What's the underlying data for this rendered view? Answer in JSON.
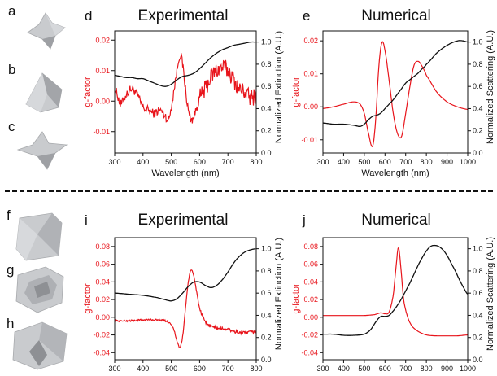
{
  "shape_labels": [
    "a",
    "b",
    "c",
    "f",
    "g",
    "h"
  ],
  "colors": {
    "gfactor": "#e8141b",
    "extinction": "#111111",
    "shape_fill": "#c9cbce",
    "shape_shadow": "#8e9094"
  },
  "chart_data": [
    {
      "panel": "d",
      "title": "Experimental",
      "type": "line",
      "xlabel": "Wavelength (nm)",
      "ylabel": "g-factor",
      "y2label": "Normalized Extinction (A.U.)",
      "xlim": [
        300,
        800
      ],
      "ylim": [
        -0.017,
        0.023
      ],
      "y2lim": [
        0.0,
        1.1
      ],
      "xticks": [
        300,
        400,
        500,
        600,
        700,
        800
      ],
      "yticks": [
        -0.01,
        0.0,
        0.01,
        0.02
      ],
      "ytick_labels": [
        "-0.01",
        "0.00",
        "0.01",
        "0.02"
      ],
      "y2ticks": [
        0.0,
        0.2,
        0.4,
        0.6,
        0.8,
        1.0
      ],
      "y2tick_labels": [
        "0.0",
        "0.2",
        "0.4",
        "0.6",
        "0.8",
        "1.0"
      ],
      "noise": 0.0018,
      "series": [
        {
          "axis": "left",
          "color": "#e8141b",
          "x": [
            300,
            310,
            320,
            340,
            360,
            380,
            400,
            420,
            440,
            460,
            480,
            490,
            500,
            510,
            520,
            530,
            540,
            550,
            560,
            570,
            580,
            590,
            600,
            620,
            640,
            660,
            680,
            700,
            720,
            740,
            760,
            780,
            800
          ],
          "y": [
            0.004,
            0.002,
            -0.001,
            0.002,
            0.004,
            0.002,
            -0.002,
            -0.003,
            -0.004,
            -0.003,
            -0.005,
            -0.006,
            -0.002,
            0.004,
            0.01,
            0.015,
            0.012,
            0.004,
            -0.003,
            -0.006,
            -0.005,
            -0.002,
            0.001,
            0.004,
            0.008,
            0.01,
            0.011,
            0.01,
            0.007,
            0.004,
            0.003,
            0.001,
            0.002
          ]
        },
        {
          "axis": "right",
          "color": "#111111",
          "x": [
            300,
            320,
            340,
            360,
            380,
            400,
            420,
            440,
            460,
            480,
            500,
            520,
            540,
            560,
            580,
            600,
            620,
            640,
            660,
            680,
            700,
            720,
            740,
            760,
            780,
            800
          ],
          "y": [
            0.7,
            0.69,
            0.68,
            0.68,
            0.67,
            0.67,
            0.65,
            0.63,
            0.61,
            0.6,
            0.62,
            0.66,
            0.69,
            0.7,
            0.72,
            0.76,
            0.81,
            0.86,
            0.9,
            0.93,
            0.95,
            0.97,
            0.98,
            0.99,
            1.0,
            1.0
          ]
        }
      ]
    },
    {
      "panel": "e",
      "title": "Numerical",
      "type": "line",
      "xlabel": "Wavelength (nm)",
      "ylabel": "g-factor",
      "y2label": "Normalized Scattering (A.U.)",
      "xlim": [
        300,
        1000
      ],
      "ylim": [
        -0.014,
        0.023
      ],
      "y2lim": [
        0.0,
        1.1
      ],
      "xticks": [
        300,
        400,
        500,
        600,
        700,
        800,
        900,
        1000
      ],
      "yticks": [
        -0.01,
        0.0,
        0.01,
        0.02
      ],
      "ytick_labels": [
        "-0.01",
        "0.00",
        "0.01",
        "0.02"
      ],
      "y2ticks": [
        0.0,
        0.2,
        0.4,
        0.6,
        0.8,
        1.0
      ],
      "y2tick_labels": [
        "0.0",
        "0.2",
        "0.4",
        "0.6",
        "0.8",
        "1.0"
      ],
      "noise": 0,
      "series": [
        {
          "axis": "left",
          "color": "#e8141b",
          "x": [
            300,
            350,
            400,
            450,
            480,
            500,
            520,
            540,
            555,
            570,
            585,
            600,
            620,
            640,
            660,
            680,
            700,
            720,
            740,
            760,
            780,
            800,
            850,
            900,
            950,
            1000
          ],
          "y": [
            -0.0005,
            0.0,
            0.0008,
            0.0015,
            0.0008,
            -0.002,
            -0.008,
            -0.012,
            -0.004,
            0.012,
            0.0195,
            0.017,
            0.008,
            -0.002,
            -0.008,
            -0.009,
            -0.002,
            0.006,
            0.0125,
            0.0138,
            0.0122,
            0.0095,
            0.0045,
            0.0015,
            0.0,
            -0.0008
          ]
        },
        {
          "axis": "right",
          "color": "#111111",
          "x": [
            300,
            350,
            400,
            450,
            480,
            500,
            520,
            540,
            560,
            580,
            600,
            620,
            640,
            660,
            680,
            700,
            720,
            740,
            760,
            780,
            800,
            850,
            900,
            950,
            980,
            1000
          ],
          "y": [
            0.27,
            0.26,
            0.26,
            0.25,
            0.24,
            0.26,
            0.3,
            0.33,
            0.34,
            0.36,
            0.4,
            0.44,
            0.48,
            0.53,
            0.58,
            0.63,
            0.66,
            0.69,
            0.72,
            0.76,
            0.8,
            0.9,
            0.97,
            1.01,
            1.01,
            1.0
          ]
        }
      ]
    },
    {
      "panel": "i",
      "title": "Experimental",
      "type": "line",
      "xlabel": "Wavelength (nm)",
      "ylabel": "g-factor",
      "y2label": "Normalized Extinction (A.U.)",
      "xlim": [
        300,
        800
      ],
      "ylim": [
        -0.048,
        0.09
      ],
      "y2lim": [
        0.0,
        1.1
      ],
      "xticks": [
        300,
        400,
        500,
        600,
        700,
        800
      ],
      "yticks": [
        -0.04,
        -0.02,
        0.0,
        0.02,
        0.04,
        0.06,
        0.08
      ],
      "ytick_labels": [
        "-0.04",
        "-0.02",
        "0.00",
        "0.02",
        "0.04",
        "0.06",
        "0.08"
      ],
      "y2ticks": [
        0.0,
        0.2,
        0.4,
        0.6,
        0.8,
        1.0
      ],
      "y2tick_labels": [
        "0.0",
        "0.2",
        "0.4",
        "0.6",
        "0.8",
        "1.0"
      ],
      "noise": 0.0012,
      "series": [
        {
          "axis": "left",
          "color": "#e8141b",
          "x": [
            300,
            350,
            400,
            450,
            480,
            500,
            510,
            520,
            530,
            540,
            550,
            560,
            570,
            580,
            590,
            600,
            610,
            620,
            640,
            660,
            680,
            700,
            720,
            740,
            760,
            780,
            800
          ],
          "y": [
            -0.004,
            -0.004,
            -0.003,
            -0.003,
            -0.004,
            -0.008,
            -0.015,
            -0.027,
            -0.034,
            -0.022,
            0.01,
            0.04,
            0.053,
            0.046,
            0.028,
            0.01,
            0.001,
            -0.006,
            -0.01,
            -0.012,
            -0.013,
            -0.014,
            -0.016,
            -0.017,
            -0.018,
            -0.017,
            -0.016
          ]
        },
        {
          "axis": "right",
          "color": "#111111",
          "x": [
            300,
            350,
            400,
            450,
            480,
            500,
            520,
            540,
            560,
            580,
            600,
            620,
            640,
            660,
            680,
            700,
            720,
            740,
            760,
            780,
            800
          ],
          "y": [
            0.6,
            0.59,
            0.58,
            0.56,
            0.54,
            0.53,
            0.55,
            0.6,
            0.66,
            0.7,
            0.7,
            0.67,
            0.65,
            0.67,
            0.72,
            0.79,
            0.87,
            0.93,
            0.97,
            0.99,
            1.0
          ]
        }
      ]
    },
    {
      "panel": "j",
      "title": "Numerical",
      "type": "line",
      "xlabel": "Wavelength (nm)",
      "ylabel": "g-factor",
      "y2label": "Normalized Scattering (A.U.)",
      "xlim": [
        300,
        1000
      ],
      "ylim": [
        -0.048,
        0.09
      ],
      "y2lim": [
        0.0,
        1.1
      ],
      "xticks": [
        300,
        400,
        500,
        600,
        700,
        800,
        900,
        1000
      ],
      "yticks": [
        -0.04,
        -0.02,
        0.0,
        0.02,
        0.04,
        0.06,
        0.08
      ],
      "ytick_labels": [
        "-0.04",
        "-0.02",
        "0.00",
        "0.02",
        "0.04",
        "0.06",
        "0.08"
      ],
      "y2ticks": [
        0.0,
        0.2,
        0.4,
        0.6,
        0.8,
        1.0
      ],
      "y2tick_labels": [
        "0.0",
        "0.2",
        "0.4",
        "0.6",
        "0.8",
        "1.0"
      ],
      "noise": 0,
      "series": [
        {
          "axis": "left",
          "color": "#e8141b",
          "x": [
            300,
            400,
            500,
            550,
            580,
            600,
            620,
            640,
            655,
            665,
            675,
            690,
            710,
            730,
            760,
            800,
            850,
            900,
            950,
            1000
          ],
          "y": [
            0.002,
            0.002,
            0.002,
            0.003,
            0.005,
            0.004,
            0.006,
            0.025,
            0.06,
            0.079,
            0.06,
            0.02,
            0.0,
            -0.01,
            -0.016,
            -0.02,
            -0.021,
            -0.021,
            -0.021,
            -0.02
          ]
        },
        {
          "axis": "right",
          "color": "#111111",
          "x": [
            300,
            350,
            400,
            450,
            500,
            530,
            560,
            580,
            600,
            620,
            640,
            660,
            680,
            700,
            720,
            740,
            760,
            780,
            800,
            820,
            840,
            860,
            880,
            900,
            920,
            940,
            960,
            980,
            1000
          ],
          "y": [
            0.23,
            0.23,
            0.22,
            0.22,
            0.23,
            0.27,
            0.35,
            0.39,
            0.39,
            0.4,
            0.44,
            0.49,
            0.55,
            0.62,
            0.69,
            0.77,
            0.85,
            0.92,
            0.98,
            1.02,
            1.03,
            1.02,
            0.99,
            0.94,
            0.87,
            0.8,
            0.72,
            0.65,
            0.59
          ]
        }
      ]
    }
  ]
}
